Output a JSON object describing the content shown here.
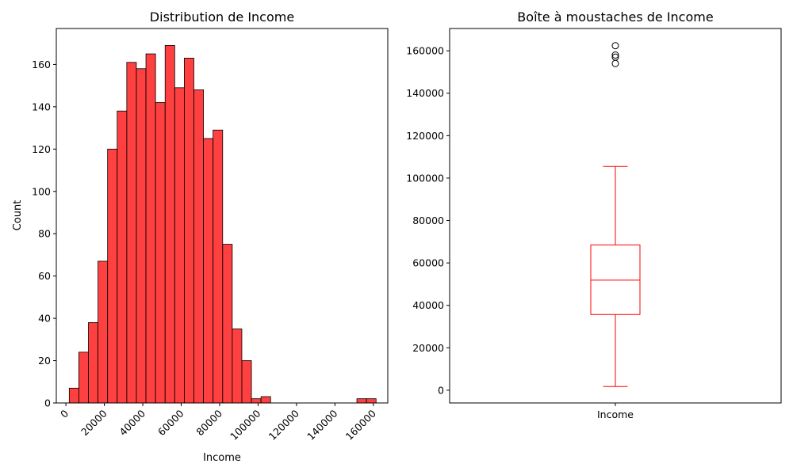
{
  "chart_data": [
    {
      "type": "bar",
      "title": "Distribution de Income",
      "xlabel": "Income",
      "ylabel": "Count",
      "xlim": [
        -5000,
        167500
      ],
      "ylim": [
        0,
        177
      ],
      "xticks": [
        0,
        20000,
        40000,
        60000,
        80000,
        100000,
        120000,
        140000,
        160000
      ],
      "yticks": [
        0,
        20,
        40,
        60,
        80,
        100,
        120,
        140,
        160
      ],
      "bar_color": "#ff0000",
      "bin_edges": [
        1730,
        6720,
        11710,
        16700,
        21690,
        26680,
        31670,
        36660,
        41650,
        46640,
        51630,
        56620,
        61610,
        66600,
        71590,
        76580,
        81570,
        86560,
        91550,
        96540,
        101530,
        106520,
        111510,
        116500,
        121490,
        126480,
        131470,
        136460,
        141450,
        146440,
        151430,
        156420,
        161410
      ],
      "counts": [
        7,
        24,
        38,
        67,
        120,
        138,
        161,
        158,
        165,
        142,
        169,
        149,
        163,
        148,
        125,
        129,
        75,
        35,
        20,
        2,
        3,
        0,
        0,
        0,
        0,
        0,
        0,
        0,
        0,
        0,
        2,
        2
      ]
    },
    {
      "type": "box",
      "title": "Boîte à moustaches de Income",
      "category": "Income",
      "ylim": [
        -6000,
        170500
      ],
      "yticks": [
        0,
        20000,
        40000,
        60000,
        80000,
        100000,
        120000,
        140000,
        160000
      ],
      "color": "#ff0000",
      "whisker_low": 1730,
      "q1": 35700,
      "median": 51900,
      "q3": 68500,
      "whisker_high": 105500,
      "outliers": [
        154000,
        157000,
        158000,
        162400
      ]
    }
  ]
}
